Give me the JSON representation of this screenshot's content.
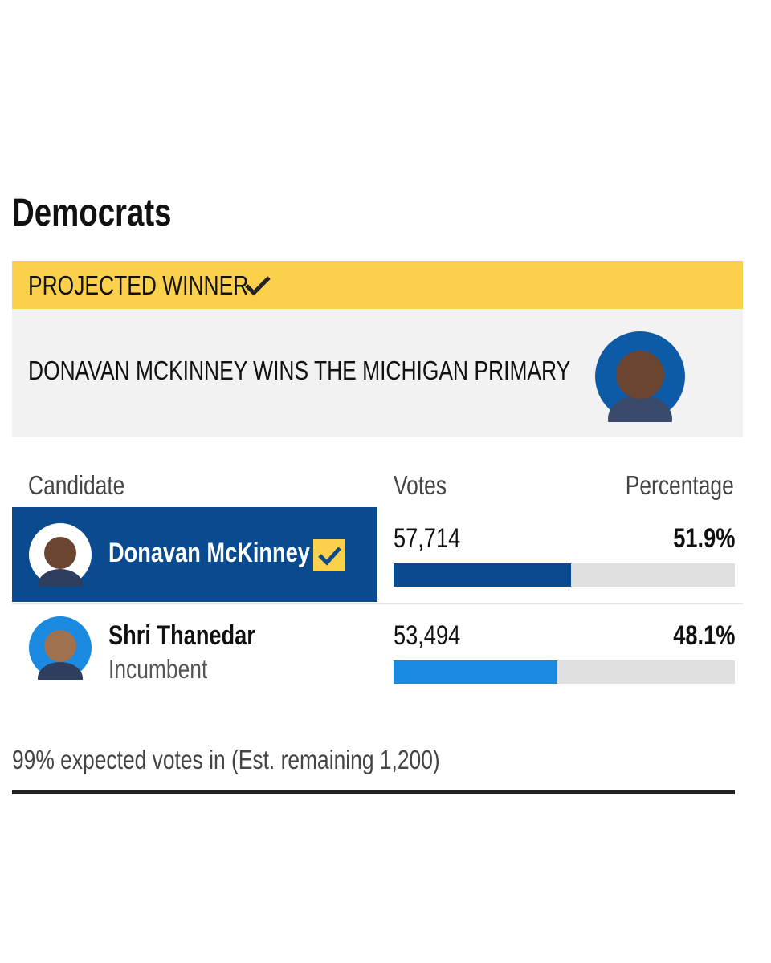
{
  "section_title": "Democrats",
  "banner": {
    "label": "PROJECTED WINNER",
    "headline": "DONAVAN MCKINNEY WINS THE MICHIGAN PRIMARY"
  },
  "table": {
    "headers": [
      "Candidate",
      "Votes",
      "Percentage"
    ],
    "rows": [
      {
        "name": "Donavan McKinney",
        "votes": "57,714",
        "percent": 51.9,
        "percent_label": "51.9%",
        "winner": true
      },
      {
        "name": "Shri Thanedar",
        "note": "Incumbent",
        "votes": "53,494",
        "percent": 48.1,
        "percent_label": "48.1%",
        "winner": false
      }
    ]
  },
  "footer": "99% expected votes in (Est. remaining 1,200)"
}
